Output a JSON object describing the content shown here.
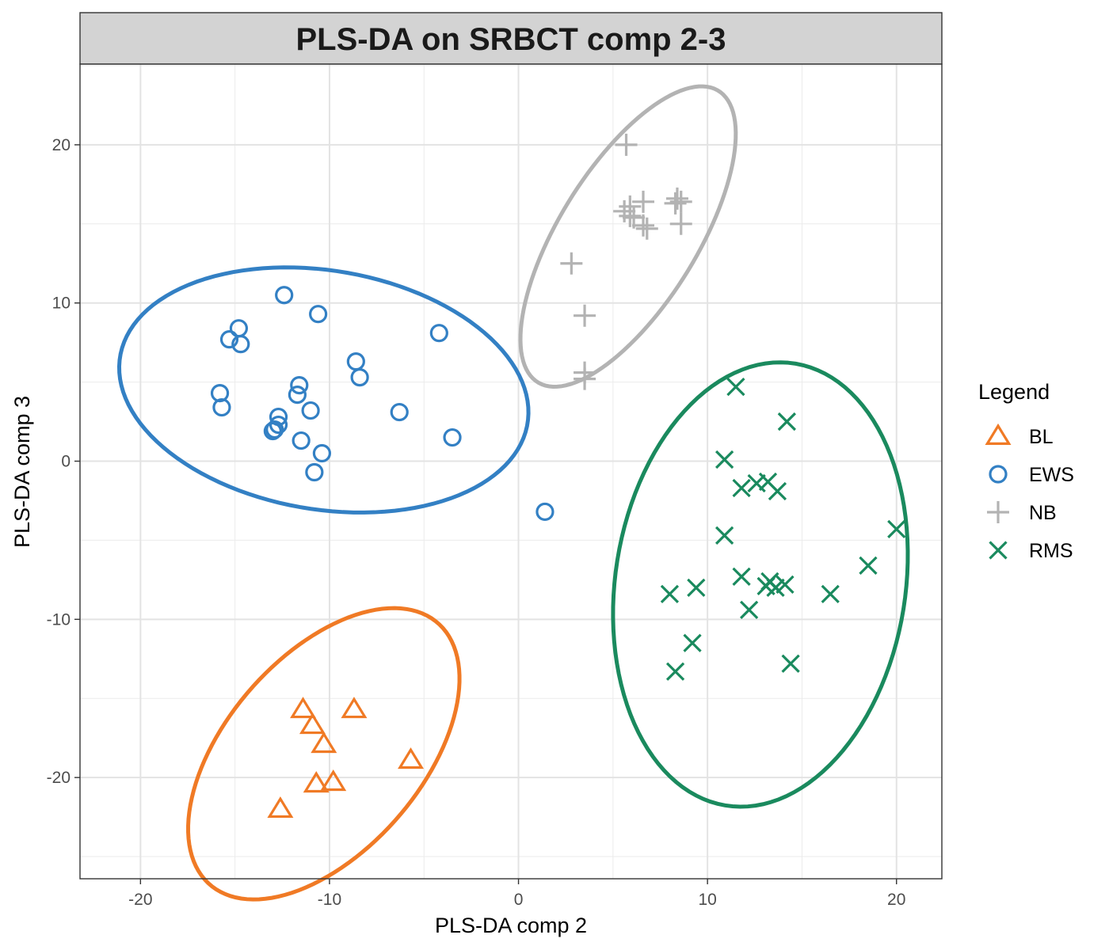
{
  "chart_data": {
    "type": "scatter",
    "title": "PLS-DA on SRBCT comp 2-3",
    "xlabel": "PLS-DA comp 2",
    "ylabel": "PLS-DA comp 3",
    "xlim": [
      -23.2,
      22.4
    ],
    "ylim": [
      -26.4,
      25.1
    ],
    "x_ticks": [
      -20,
      -10,
      0,
      10,
      20
    ],
    "y_ticks": [
      -20,
      -10,
      0,
      10,
      20
    ],
    "x_tick_labels": [
      "-20",
      "-10",
      "0",
      "10",
      "20"
    ],
    "y_tick_labels": [
      "-20",
      "-10",
      "0",
      "10",
      "20"
    ],
    "grid": true,
    "legend": {
      "title": "Legend",
      "position": "right"
    },
    "series": [
      {
        "name": "BL",
        "marker": "triangle",
        "color": "#f07a25",
        "points": [
          [
            -11.4,
            -15.7
          ],
          [
            -8.7,
            -15.7
          ],
          [
            -10.9,
            -16.7
          ],
          [
            -10.3,
            -17.9
          ],
          [
            -5.7,
            -18.9
          ],
          [
            -9.8,
            -20.3
          ],
          [
            -10.7,
            -20.4
          ],
          [
            -12.6,
            -22.0
          ]
        ],
        "ellipse": {
          "center": [
            -10.3,
            -18.5
          ],
          "semi_axes": [
            10.3,
            5.5
          ],
          "angle_deg": 58
        }
      },
      {
        "name": "EWS",
        "marker": "circle",
        "color": "#3380c4",
        "points": [
          [
            -12.4,
            10.5
          ],
          [
            -10.6,
            9.3
          ],
          [
            -14.8,
            8.4
          ],
          [
            -15.3,
            7.7
          ],
          [
            -14.7,
            7.4
          ],
          [
            -4.2,
            8.1
          ],
          [
            -8.6,
            6.3
          ],
          [
            -8.4,
            5.3
          ],
          [
            -11.6,
            4.8
          ],
          [
            -11.7,
            4.2
          ],
          [
            -15.8,
            4.3
          ],
          [
            -15.7,
            3.4
          ],
          [
            -11.0,
            3.2
          ],
          [
            -6.3,
            3.1
          ],
          [
            -12.7,
            2.8
          ],
          [
            -12.7,
            2.3
          ],
          [
            -12.9,
            2.0
          ],
          [
            -13.0,
            1.9
          ],
          [
            -11.5,
            1.3
          ],
          [
            -3.5,
            1.5
          ],
          [
            -10.4,
            0.5
          ],
          [
            -10.8,
            -0.7
          ],
          [
            1.4,
            -3.2
          ]
        ],
        "ellipse": {
          "center": [
            -10.3,
            4.5
          ],
          "semi_axes": [
            11.0,
            7.5
          ],
          "angle_deg": -14
        }
      },
      {
        "name": "NB",
        "marker": "plus",
        "color": "#b3b3b3",
        "points": [
          [
            5.7,
            20.0
          ],
          [
            6.6,
            16.4
          ],
          [
            8.3,
            16.3
          ],
          [
            8.4,
            16.6
          ],
          [
            8.6,
            16.4
          ],
          [
            5.9,
            16.1
          ],
          [
            5.6,
            15.8
          ],
          [
            5.9,
            15.5
          ],
          [
            6.1,
            15.4
          ],
          [
            6.6,
            14.9
          ],
          [
            6.8,
            14.7
          ],
          [
            8.6,
            15.0
          ],
          [
            2.8,
            12.5
          ],
          [
            3.5,
            9.2
          ],
          [
            3.5,
            5.6
          ],
          [
            3.5,
            5.2
          ]
        ],
        "ellipse": {
          "center": [
            5.8,
            14.2
          ],
          "semi_axes": [
            10.4,
            3.8
          ],
          "angle_deg": 64
        }
      },
      {
        "name": "RMS",
        "marker": "cross",
        "color": "#1a8a5e",
        "points": [
          [
            11.5,
            4.7
          ],
          [
            14.2,
            2.5
          ],
          [
            10.9,
            0.1
          ],
          [
            12.6,
            -1.4
          ],
          [
            13.2,
            -1.3
          ],
          [
            11.8,
            -1.7
          ],
          [
            13.7,
            -1.9
          ],
          [
            20.0,
            -4.3
          ],
          [
            10.9,
            -4.7
          ],
          [
            18.5,
            -6.6
          ],
          [
            11.8,
            -7.3
          ],
          [
            13.3,
            -7.6
          ],
          [
            13.1,
            -7.9
          ],
          [
            14.1,
            -7.8
          ],
          [
            13.6,
            -8.0
          ],
          [
            9.4,
            -8.0
          ],
          [
            8.0,
            -8.4
          ],
          [
            16.5,
            -8.4
          ],
          [
            12.2,
            -9.4
          ],
          [
            9.2,
            -11.5
          ],
          [
            14.4,
            -12.8
          ],
          [
            8.3,
            -13.3
          ]
        ],
        "ellipse": {
          "center": [
            12.8,
            -7.8
          ],
          "semi_axes": [
            14.1,
            7.7
          ],
          "angle_deg": 84
        }
      }
    ]
  }
}
